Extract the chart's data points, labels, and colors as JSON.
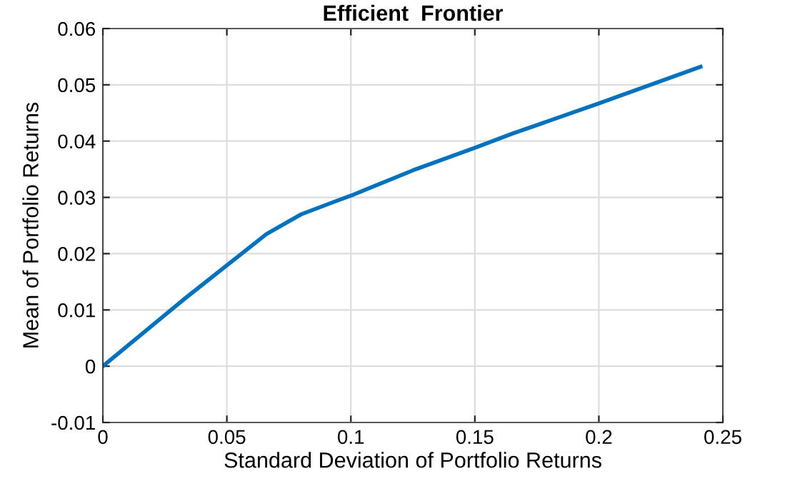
{
  "chart_data": {
    "type": "line",
    "title": "Efficient  Frontier",
    "xlabel": "Standard Deviation of Portfolio Returns",
    "ylabel": "Mean of Portfolio Returns",
    "x": [
      0,
      0.033,
      0.066,
      0.08,
      0.095,
      0.1,
      0.125,
      0.15,
      0.165,
      0.2,
      0.241
    ],
    "series": [
      {
        "color": "#0072bd",
        "values": [
          0,
          0.012,
          0.0235,
          0.027,
          0.0295,
          0.0303,
          0.0348,
          0.0388,
          0.0413,
          0.0467,
          0.0532
        ]
      }
    ],
    "xlim": [
      0,
      0.25
    ],
    "xticks": [
      0,
      0.05,
      0.1,
      0.15,
      0.2,
      0.25
    ],
    "ylim": [
      -0.01,
      0.06
    ],
    "yticks": [
      {
        "value": -0.01,
        "label": "-0.01"
      },
      0,
      0.01,
      0.02,
      0.03,
      0.04,
      0.05,
      0.06
    ],
    "grid": true,
    "legend": false,
    "marker": "none",
    "line_style": "solid"
  }
}
